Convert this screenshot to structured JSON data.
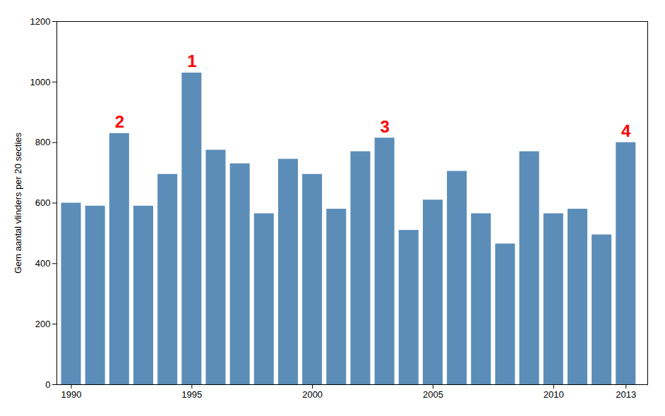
{
  "chart_data": {
    "type": "bar",
    "x": [
      1990,
      1991,
      1992,
      1993,
      1994,
      1995,
      1996,
      1997,
      1998,
      1999,
      2000,
      2001,
      2002,
      2003,
      2004,
      2005,
      2006,
      2007,
      2008,
      2009,
      2010,
      2011,
      2012,
      2013
    ],
    "values": [
      600,
      590,
      830,
      590,
      695,
      1030,
      775,
      730,
      565,
      745,
      695,
      580,
      770,
      815,
      510,
      610,
      705,
      565,
      465,
      770,
      565,
      580,
      495,
      800
    ],
    "color": "#5b8db8",
    "ylabel": "Gem aantal vlinders per 20 secties",
    "xlim": [
      1989.4,
      2013.9
    ],
    "xticks": [
      1990,
      1995,
      2000,
      2005,
      2010,
      2013
    ],
    "ylim": [
      0,
      1200
    ],
    "yticks": [
      0,
      200,
      400,
      600,
      800,
      1000,
      1200
    ],
    "grid": false,
    "annotations": [
      {
        "text": "1",
        "x": 1995,
        "y": 1030,
        "color": "red"
      },
      {
        "text": "2",
        "x": 1992,
        "y": 830,
        "color": "red"
      },
      {
        "text": "3",
        "x": 2003,
        "y": 815,
        "color": "red"
      },
      {
        "text": "4",
        "x": 2013,
        "y": 800,
        "color": "red"
      }
    ]
  }
}
